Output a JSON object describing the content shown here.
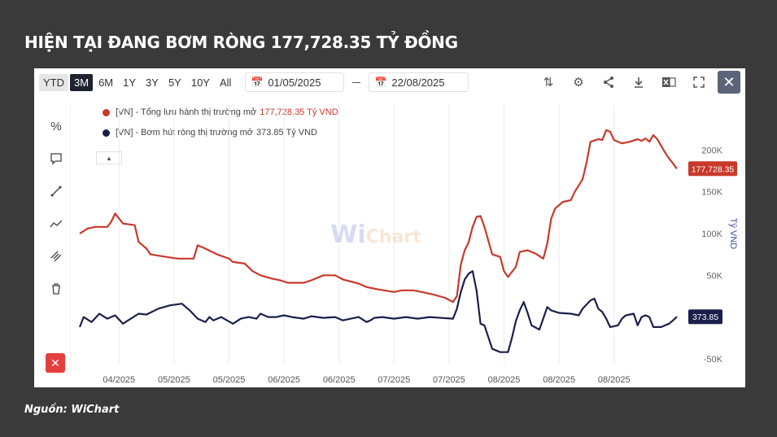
{
  "headline": "HIỆN TẠI ĐANG BƠM RÒNG 177,728.35 TỶ ĐỒNG",
  "source": "Nguồn: WiChart",
  "toolbar": {
    "ranges": [
      "YTD",
      "3M",
      "6M",
      "1Y",
      "3Y",
      "5Y",
      "10Y",
      "All"
    ],
    "active_range": "3M",
    "date_from": "01/05/2025",
    "date_to": "22/08/2025",
    "icons": [
      "axis-toggle-icon",
      "gear-icon",
      "share-icon",
      "download-icon",
      "excel-icon",
      "fullscreen-icon",
      "close-icon"
    ]
  },
  "side_tools": [
    "percent-icon",
    "comment-icon",
    "line-tool-icon",
    "trend-icon",
    "measure-icon",
    "trash-icon",
    "delete-icon"
  ],
  "colors": {
    "red": "#c8392b",
    "navy": "#1b1f4b",
    "grid": "#ececec"
  },
  "watermark": {
    "wi": "Wi",
    "chart": "Chart"
  },
  "chart_data": {
    "type": "line",
    "ylabel": "Tỷ VND",
    "ylim": [
      -55000,
      255000
    ],
    "yticks": [
      {
        "v": 200000,
        "label": "200K"
      },
      {
        "v": 150000,
        "label": "150K"
      },
      {
        "v": 100000,
        "label": "100K"
      },
      {
        "v": 50000,
        "label": "50K"
      },
      {
        "v": -50000,
        "label": "-50K"
      }
    ],
    "x_start": "2025-03-24",
    "x_end": "2025-08-23",
    "xticks": [
      {
        "d": "2025-04-03",
        "label": "04/2025"
      },
      {
        "d": "2025-04-17",
        "label": "05/2025"
      },
      {
        "d": "2025-05-01",
        "label": "05/2025"
      },
      {
        "d": "2025-05-15",
        "label": "06/2025"
      },
      {
        "d": "2025-05-29",
        "label": "06/2025"
      },
      {
        "d": "2025-06-12",
        "label": "07/2025"
      },
      {
        "d": "2025-06-26",
        "label": "07/2025"
      },
      {
        "d": "2025-07-10",
        "label": "08/2025"
      },
      {
        "d": "2025-07-24",
        "label": "08/2025"
      },
      {
        "d": "2025-08-07",
        "label": "08/2025"
      }
    ],
    "series": [
      {
        "name": "[VN] - Tổng lưu hành thị trường mở",
        "legend_value": "177,728.35 Tỷ VND",
        "last_label": "177,728.35",
        "color": "#c8392b",
        "points": [
          [
            "2025-03-24",
            100000
          ],
          [
            "2025-03-26",
            106000
          ],
          [
            "2025-03-28",
            108000
          ],
          [
            "2025-03-31",
            108000
          ],
          [
            "2025-04-01",
            114000
          ],
          [
            "2025-04-02",
            124000
          ],
          [
            "2025-04-04",
            112000
          ],
          [
            "2025-04-07",
            110000
          ],
          [
            "2025-04-08",
            90000
          ],
          [
            "2025-04-10",
            82000
          ],
          [
            "2025-04-11",
            75000
          ],
          [
            "2025-04-15",
            72000
          ],
          [
            "2025-04-18",
            70000
          ],
          [
            "2025-04-22",
            70000
          ],
          [
            "2025-04-23",
            86000
          ],
          [
            "2025-04-25",
            82000
          ],
          [
            "2025-04-28",
            75000
          ],
          [
            "2025-05-01",
            70000
          ],
          [
            "2025-05-02",
            66000
          ],
          [
            "2025-05-05",
            64000
          ],
          [
            "2025-05-07",
            55000
          ],
          [
            "2025-05-09",
            50000
          ],
          [
            "2025-05-12",
            46000
          ],
          [
            "2025-05-14",
            44000
          ],
          [
            "2025-05-16",
            41000
          ],
          [
            "2025-05-20",
            41000
          ],
          [
            "2025-05-22",
            44000
          ],
          [
            "2025-05-25",
            50000
          ],
          [
            "2025-05-28",
            50000
          ],
          [
            "2025-05-30",
            45000
          ],
          [
            "2025-06-03",
            40000
          ],
          [
            "2025-06-05",
            36000
          ],
          [
            "2025-06-08",
            33000
          ],
          [
            "2025-06-12",
            30000
          ],
          [
            "2025-06-14",
            32000
          ],
          [
            "2025-06-17",
            32000
          ],
          [
            "2025-06-20",
            29000
          ],
          [
            "2025-06-22",
            27000
          ],
          [
            "2025-06-25",
            23000
          ],
          [
            "2025-06-27",
            18000
          ],
          [
            "2025-06-28",
            25000
          ],
          [
            "2025-06-29",
            63000
          ],
          [
            "2025-06-30",
            80000
          ],
          [
            "2025-07-01",
            90000
          ],
          [
            "2025-07-02",
            108000
          ],
          [
            "2025-07-03",
            120000
          ],
          [
            "2025-07-04",
            121000
          ],
          [
            "2025-07-05",
            108000
          ],
          [
            "2025-07-07",
            75000
          ],
          [
            "2025-07-09",
            72000
          ],
          [
            "2025-07-10",
            55000
          ],
          [
            "2025-07-11",
            48000
          ],
          [
            "2025-07-13",
            60000
          ],
          [
            "2025-07-14",
            78000
          ],
          [
            "2025-07-16",
            80000
          ],
          [
            "2025-07-17",
            78000
          ],
          [
            "2025-07-18",
            76000
          ],
          [
            "2025-07-20",
            70000
          ],
          [
            "2025-07-21",
            88000
          ],
          [
            "2025-07-22",
            118000
          ],
          [
            "2025-07-23",
            130000
          ],
          [
            "2025-07-25",
            138000
          ],
          [
            "2025-07-27",
            140000
          ],
          [
            "2025-07-28",
            150000
          ],
          [
            "2025-07-30",
            165000
          ],
          [
            "2025-07-31",
            185000
          ],
          [
            "2025-08-01",
            210000
          ],
          [
            "2025-08-03",
            213000
          ],
          [
            "2025-08-04",
            212000
          ],
          [
            "2025-08-05",
            224000
          ],
          [
            "2025-08-06",
            222000
          ],
          [
            "2025-08-07",
            212000
          ],
          [
            "2025-08-09",
            208000
          ],
          [
            "2025-08-11",
            210000
          ],
          [
            "2025-08-13",
            213000
          ],
          [
            "2025-08-14",
            211000
          ],
          [
            "2025-08-15",
            214000
          ],
          [
            "2025-08-16",
            210000
          ],
          [
            "2025-08-17",
            218000
          ],
          [
            "2025-08-18",
            213000
          ],
          [
            "2025-08-19",
            205000
          ],
          [
            "2025-08-20",
            197000
          ],
          [
            "2025-08-21",
            190000
          ],
          [
            "2025-08-22",
            184000
          ],
          [
            "2025-08-23",
            177728.35
          ]
        ]
      },
      {
        "name": "[VN] - Bơm hút ròng thị trường mở",
        "legend_value": "373.85 Tỷ VND",
        "last_label": "373.85",
        "color": "#1b1f4b",
        "points": [
          [
            "2025-03-24",
            -12000
          ],
          [
            "2025-03-25",
            0
          ],
          [
            "2025-03-27",
            -6000
          ],
          [
            "2025-03-29",
            4000
          ],
          [
            "2025-03-31",
            -2000
          ],
          [
            "2025-04-02",
            2000
          ],
          [
            "2025-04-04",
            -8000
          ],
          [
            "2025-04-06",
            -2000
          ],
          [
            "2025-04-08",
            4000
          ],
          [
            "2025-04-10",
            3000
          ],
          [
            "2025-04-13",
            10000
          ],
          [
            "2025-04-16",
            14000
          ],
          [
            "2025-04-19",
            16000
          ],
          [
            "2025-04-21",
            8000
          ],
          [
            "2025-04-23",
            -2000
          ],
          [
            "2025-04-25",
            -6000
          ],
          [
            "2025-04-26",
            0
          ],
          [
            "2025-04-27",
            -4000
          ],
          [
            "2025-04-29",
            0
          ],
          [
            "2025-05-02",
            -8000
          ],
          [
            "2025-05-04",
            -2000
          ],
          [
            "2025-05-06",
            0
          ],
          [
            "2025-05-08",
            -2000
          ],
          [
            "2025-05-09",
            4000
          ],
          [
            "2025-05-11",
            0
          ],
          [
            "2025-05-13",
            0
          ],
          [
            "2025-05-15",
            2000
          ],
          [
            "2025-05-17",
            0
          ],
          [
            "2025-05-20",
            -2000
          ],
          [
            "2025-05-22",
            1000
          ],
          [
            "2025-05-25",
            -1000
          ],
          [
            "2025-05-28",
            0
          ],
          [
            "2025-05-30",
            -4000
          ],
          [
            "2025-06-01",
            -2000
          ],
          [
            "2025-06-03",
            0
          ],
          [
            "2025-06-05",
            -6000
          ],
          [
            "2025-06-06",
            -4000
          ],
          [
            "2025-06-07",
            -1000
          ],
          [
            "2025-06-09",
            0
          ],
          [
            "2025-06-12",
            -2000
          ],
          [
            "2025-06-15",
            0
          ],
          [
            "2025-06-18",
            -2000
          ],
          [
            "2025-06-21",
            0
          ],
          [
            "2025-06-24",
            -1000
          ],
          [
            "2025-06-27",
            -2000
          ],
          [
            "2025-06-28",
            10000
          ],
          [
            "2025-06-29",
            30000
          ],
          [
            "2025-06-30",
            45000
          ],
          [
            "2025-07-01",
            52000
          ],
          [
            "2025-07-02",
            55000
          ],
          [
            "2025-07-03",
            32000
          ],
          [
            "2025-07-04",
            -8000
          ],
          [
            "2025-07-05",
            -10000
          ],
          [
            "2025-07-07",
            -38000
          ],
          [
            "2025-07-09",
            -42000
          ],
          [
            "2025-07-11",
            -42000
          ],
          [
            "2025-07-12",
            -25000
          ],
          [
            "2025-07-13",
            -5000
          ],
          [
            "2025-07-14",
            8000
          ],
          [
            "2025-07-15",
            18000
          ],
          [
            "2025-07-16",
            5000
          ],
          [
            "2025-07-17",
            -10000
          ],
          [
            "2025-07-19",
            -15000
          ],
          [
            "2025-07-21",
            12000
          ],
          [
            "2025-07-22",
            8000
          ],
          [
            "2025-07-24",
            5000
          ],
          [
            "2025-07-27",
            4000
          ],
          [
            "2025-07-29",
            2000
          ],
          [
            "2025-07-30",
            10000
          ],
          [
            "2025-08-01",
            20000
          ],
          [
            "2025-08-02",
            22000
          ],
          [
            "2025-08-03",
            10000
          ],
          [
            "2025-08-04",
            6000
          ],
          [
            "2025-08-05",
            -2000
          ],
          [
            "2025-08-06",
            -12000
          ],
          [
            "2025-08-08",
            -10000
          ],
          [
            "2025-08-09",
            -2000
          ],
          [
            "2025-08-10",
            2000
          ],
          [
            "2025-08-12",
            4000
          ],
          [
            "2025-08-13",
            -10000
          ],
          [
            "2025-08-14",
            0
          ],
          [
            "2025-08-15",
            2000
          ],
          [
            "2025-08-16",
            0
          ],
          [
            "2025-08-17",
            -12000
          ],
          [
            "2025-08-19",
            -12000
          ],
          [
            "2025-08-20",
            -10000
          ],
          [
            "2025-08-21",
            -8000
          ],
          [
            "2025-08-22",
            -4000
          ],
          [
            "2025-08-23",
            373.85
          ]
        ]
      }
    ]
  }
}
